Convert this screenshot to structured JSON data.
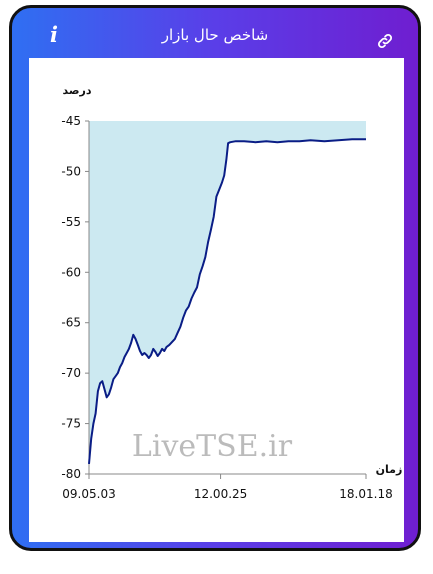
{
  "header": {
    "title": "شاخص حال بازار",
    "info_glyph": "i"
  },
  "watermark": "LiveTSE.ir",
  "chart_data": {
    "type": "area",
    "ylabel": "درصد",
    "xlabel": "زمان",
    "ylim": [
      -80,
      -45
    ],
    "yticks": [
      -45,
      -50,
      -55,
      -60,
      -65,
      -70,
      -75,
      -80
    ],
    "xticks": [
      "09.05.03",
      "12.00.25",
      "18.01.18"
    ],
    "x_range": [
      0,
      100
    ],
    "xtick_positions": [
      0,
      47.5,
      100
    ],
    "fill_color": "#cce9f1",
    "line_color": "#0a1d86",
    "series": [
      {
        "points": [
          [
            0,
            -79.0
          ],
          [
            0.8,
            -76.5
          ],
          [
            1.6,
            -75.0
          ],
          [
            2.4,
            -74.0
          ],
          [
            3.2,
            -71.8
          ],
          [
            4.0,
            -71.0
          ],
          [
            4.8,
            -70.8
          ],
          [
            5.6,
            -71.6
          ],
          [
            6.4,
            -72.4
          ],
          [
            7.2,
            -72.1
          ],
          [
            8.0,
            -71.4
          ],
          [
            8.8,
            -70.6
          ],
          [
            9.6,
            -70.3
          ],
          [
            10.4,
            -70.0
          ],
          [
            11.2,
            -69.4
          ],
          [
            12.0,
            -69.0
          ],
          [
            12.8,
            -68.4
          ],
          [
            13.6,
            -68.0
          ],
          [
            14.4,
            -67.6
          ],
          [
            15.2,
            -67.0
          ],
          [
            16.0,
            -66.2
          ],
          [
            16.8,
            -66.6
          ],
          [
            17.6,
            -67.2
          ],
          [
            18.4,
            -67.8
          ],
          [
            19.2,
            -68.2
          ],
          [
            20.0,
            -68.0
          ],
          [
            20.8,
            -68.2
          ],
          [
            21.6,
            -68.5
          ],
          [
            22.4,
            -68.2
          ],
          [
            23.2,
            -67.6
          ],
          [
            24.0,
            -67.9
          ],
          [
            24.8,
            -68.3
          ],
          [
            25.6,
            -68.0
          ],
          [
            26.4,
            -67.6
          ],
          [
            27.2,
            -67.8
          ],
          [
            28.0,
            -67.4
          ],
          [
            29.0,
            -67.2
          ],
          [
            30.0,
            -66.9
          ],
          [
            31.0,
            -66.6
          ],
          [
            32.0,
            -66.0
          ],
          [
            33.0,
            -65.4
          ],
          [
            34.0,
            -64.5
          ],
          [
            35.0,
            -63.8
          ],
          [
            36.0,
            -63.4
          ],
          [
            37.0,
            -62.6
          ],
          [
            38.0,
            -62.0
          ],
          [
            39.0,
            -61.5
          ],
          [
            40.0,
            -60.2
          ],
          [
            41.0,
            -59.4
          ],
          [
            42.0,
            -58.5
          ],
          [
            43.0,
            -57.0
          ],
          [
            44.0,
            -55.8
          ],
          [
            45.0,
            -54.5
          ],
          [
            46.0,
            -52.5
          ],
          [
            47.0,
            -51.8
          ],
          [
            48.0,
            -51.1
          ],
          [
            48.8,
            -50.4
          ],
          [
            49.6,
            -48.8
          ],
          [
            50.2,
            -47.2
          ],
          [
            51.0,
            -47.1
          ],
          [
            53.0,
            -47.0
          ],
          [
            56.0,
            -47.0
          ],
          [
            60.0,
            -47.1
          ],
          [
            64.0,
            -47.0
          ],
          [
            68.0,
            -47.1
          ],
          [
            72.0,
            -47.0
          ],
          [
            76.0,
            -47.0
          ],
          [
            80.0,
            -46.9
          ],
          [
            85.0,
            -47.0
          ],
          [
            90.0,
            -46.9
          ],
          [
            95.0,
            -46.8
          ],
          [
            100.0,
            -46.8
          ]
        ]
      }
    ]
  }
}
